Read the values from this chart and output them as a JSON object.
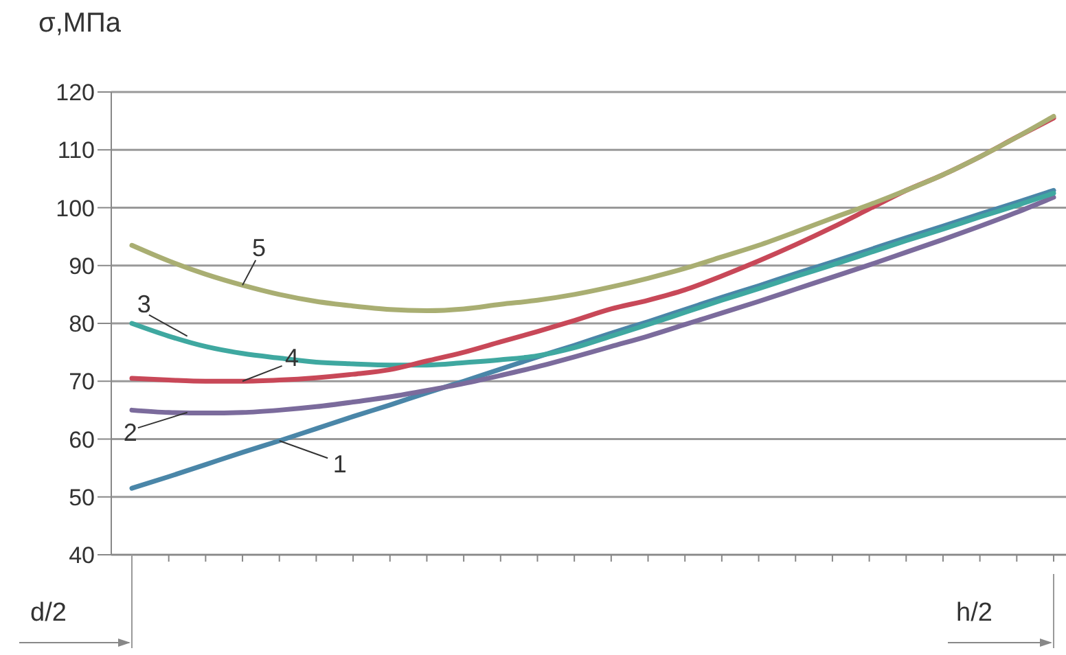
{
  "chart_data": {
    "type": "line",
    "ylabel": "σ,МПа",
    "categories": [
      null,
      null,
      null,
      null,
      null,
      null,
      null,
      null,
      null,
      null,
      null,
      null,
      null,
      null,
      null,
      null,
      null,
      null,
      null,
      null,
      null,
      null,
      null,
      null,
      null,
      null
    ],
    "series": [
      {
        "name": "1",
        "color": "#4a86a8",
        "values": [
          51.5,
          53.5,
          55.6,
          57.7,
          59.7,
          61.8,
          63.9,
          65.9,
          68,
          70,
          72.1,
          74.2,
          76.2,
          78.3,
          80.3,
          82.4,
          84.5,
          86.5,
          88.6,
          90.6,
          92.7,
          94.8,
          96.8,
          98.9,
          100.9,
          103
        ]
      },
      {
        "name": "2",
        "color": "#7b6b9c",
        "values": [
          65,
          64.6,
          64.5,
          64.6,
          65,
          65.6,
          66.4,
          67.3,
          68.4,
          69.6,
          71,
          72.5,
          74.2,
          76,
          77.8,
          79.8,
          81.8,
          83.8,
          85.9,
          88,
          90.1,
          92.3,
          94.5,
          96.8,
          99.2,
          101.8
        ]
      },
      {
        "name": "3",
        "color": "#3fa8a0",
        "values": [
          80,
          77.8,
          76,
          74.8,
          74,
          73.3,
          73,
          72.8,
          72.8,
          73.2,
          73.7,
          74.4,
          75.8,
          77.8,
          79.8,
          81.9,
          84,
          86,
          88.1,
          90.1,
          92.2,
          94.3,
          96.3,
          98.4,
          100.4,
          102.5
        ]
      },
      {
        "name": "4",
        "color": "#c84858",
        "values": [
          70.5,
          70.2,
          70,
          70,
          70.2,
          70.6,
          71.2,
          72,
          73.5,
          75,
          76.8,
          78.6,
          80.5,
          82.5,
          84,
          85.8,
          88.2,
          90.8,
          93.6,
          96.6,
          99.8,
          103,
          105.7,
          108.8,
          112.2,
          115.5
        ]
      },
      {
        "name": "5",
        "color": "#a9ae72",
        "values": [
          93.5,
          90.8,
          88.5,
          86.6,
          85,
          83.8,
          83,
          82.4,
          82.2,
          82.5,
          83.3,
          84,
          85,
          86.3,
          87.8,
          89.5,
          91.5,
          93.5,
          95.8,
          98.2,
          100.5,
          103,
          105.7,
          108.8,
          112.2,
          115.8
        ]
      }
    ],
    "ylim": [
      40,
      120
    ],
    "yticks": [
      40,
      50,
      60,
      70,
      80,
      90,
      100,
      110,
      120
    ],
    "grid": "y",
    "marker": "none",
    "line_style": "solid",
    "annotations": [
      "d/2",
      "h/2"
    ]
  }
}
